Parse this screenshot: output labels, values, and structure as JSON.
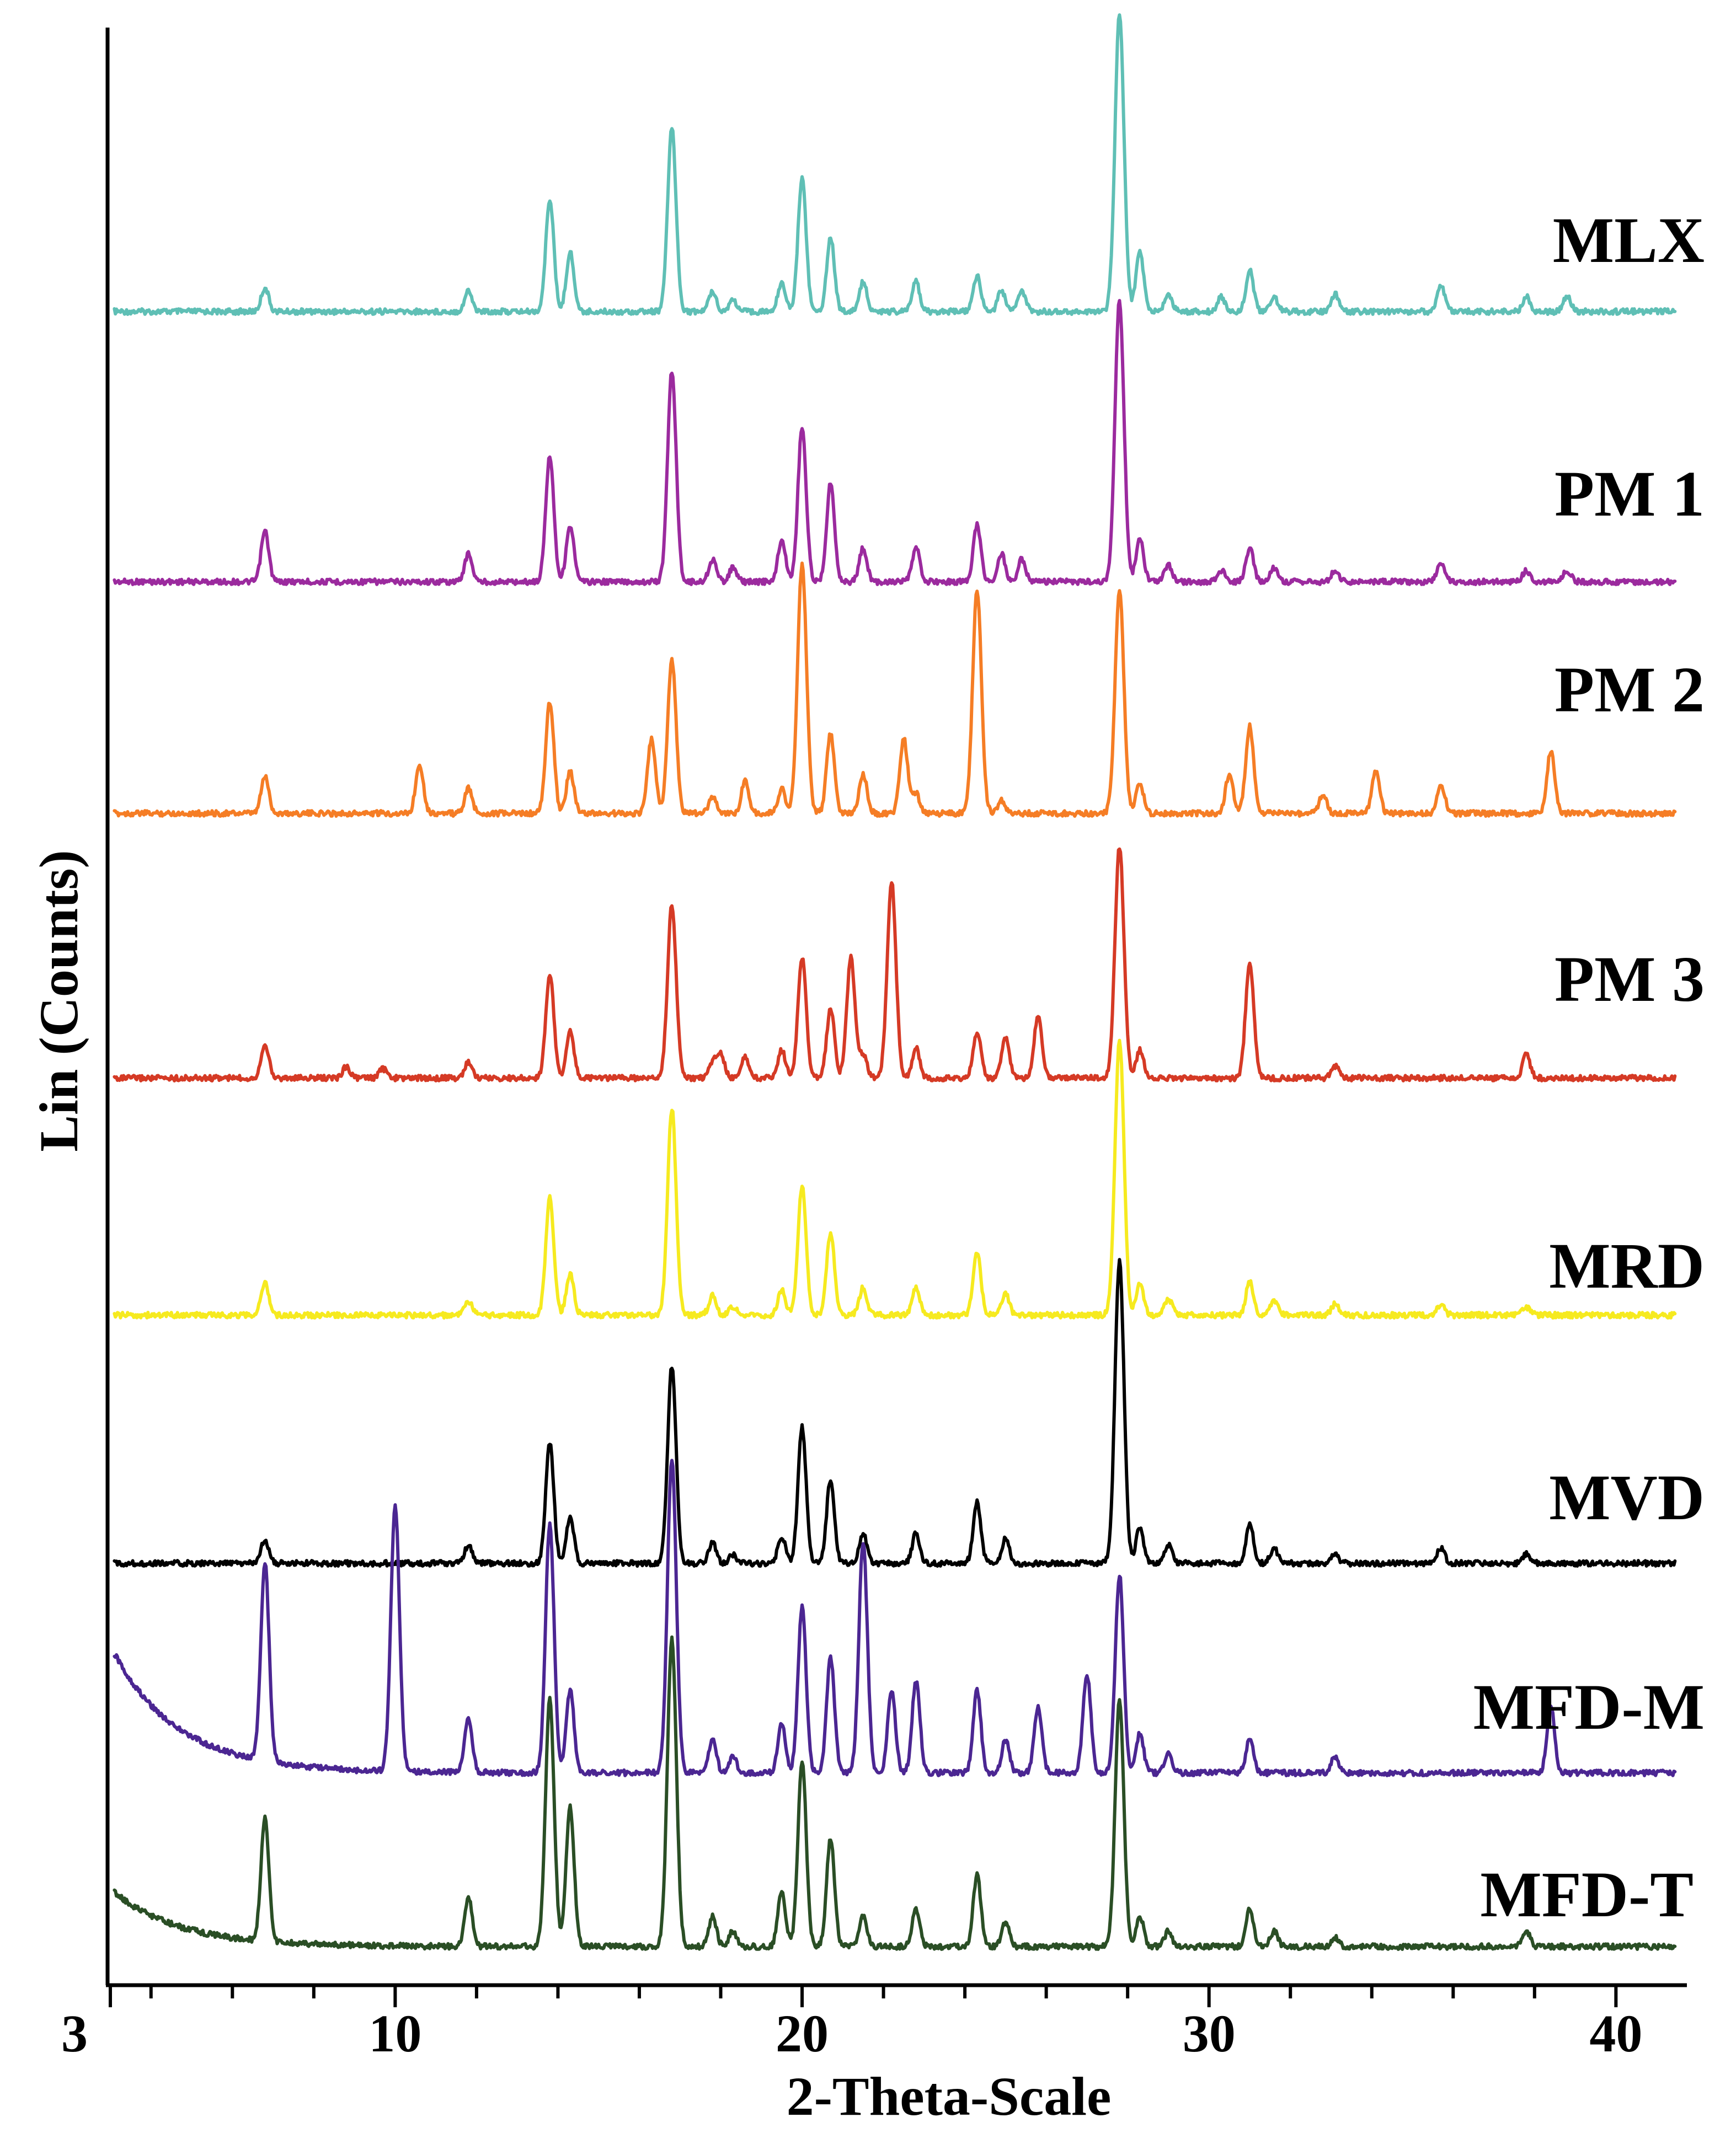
{
  "chart_data": {
    "type": "line",
    "title": "",
    "xlabel": "2-Theta-Scale",
    "ylabel": "Lin (Counts)",
    "xlim": [
      3,
      41.5
    ],
    "x_ticks": [
      3,
      10,
      20,
      30,
      40
    ],
    "x_tick_labels": [
      "3",
      "10",
      "20",
      "30",
      "40"
    ],
    "grid": false,
    "legend": "inline-right",
    "series": [
      {
        "name": "MLX",
        "color": "#5fbfb5",
        "peaks": [
          [
            6.8,
            0.08
          ],
          [
            11.8,
            0.07
          ],
          [
            13.8,
            0.38
          ],
          [
            14.3,
            0.2
          ],
          [
            16.8,
            0.62
          ],
          [
            17.8,
            0.07
          ],
          [
            18.3,
            0.04
          ],
          [
            19.5,
            0.1
          ],
          [
            20.0,
            0.45
          ],
          [
            20.7,
            0.25
          ],
          [
            21.5,
            0.1
          ],
          [
            22.8,
            0.1
          ],
          [
            24.3,
            0.12
          ],
          [
            24.9,
            0.07
          ],
          [
            25.4,
            0.07
          ],
          [
            27.8,
            1.0
          ],
          [
            28.3,
            0.2
          ],
          [
            29.0,
            0.06
          ],
          [
            30.3,
            0.05
          ],
          [
            31.0,
            0.14
          ],
          [
            31.6,
            0.05
          ],
          [
            33.1,
            0.06
          ],
          [
            35.7,
            0.09
          ],
          [
            37.8,
            0.05
          ],
          [
            38.8,
            0.05
          ]
        ]
      },
      {
        "name": "PM 1",
        "color": "#9b2a9e",
        "peaks": [
          [
            6.8,
            0.18
          ],
          [
            11.8,
            0.1
          ],
          [
            13.8,
            0.45
          ],
          [
            14.3,
            0.2
          ],
          [
            16.8,
            0.75
          ],
          [
            17.8,
            0.08
          ],
          [
            18.3,
            0.05
          ],
          [
            19.5,
            0.15
          ],
          [
            20.0,
            0.55
          ],
          [
            20.7,
            0.35
          ],
          [
            21.5,
            0.12
          ],
          [
            22.8,
            0.12
          ],
          [
            24.3,
            0.2
          ],
          [
            24.9,
            0.1
          ],
          [
            25.4,
            0.08
          ],
          [
            27.8,
            1.0
          ],
          [
            28.3,
            0.15
          ],
          [
            29.0,
            0.06
          ],
          [
            30.3,
            0.04
          ],
          [
            31.0,
            0.12
          ],
          [
            31.6,
            0.05
          ],
          [
            33.1,
            0.04
          ],
          [
            35.7,
            0.07
          ],
          [
            37.8,
            0.04
          ],
          [
            38.8,
            0.04
          ]
        ]
      },
      {
        "name": "PM 2",
        "color": "#f57d25",
        "peaks": [
          [
            6.8,
            0.15
          ],
          [
            10.6,
            0.2
          ],
          [
            11.8,
            0.1
          ],
          [
            13.8,
            0.45
          ],
          [
            14.3,
            0.17
          ],
          [
            16.3,
            0.3
          ],
          [
            16.8,
            0.62
          ],
          [
            17.8,
            0.07
          ],
          [
            18.6,
            0.13
          ],
          [
            19.5,
            0.1
          ],
          [
            20.0,
            1.0
          ],
          [
            20.7,
            0.32
          ],
          [
            21.5,
            0.16
          ],
          [
            22.5,
            0.3
          ],
          [
            22.8,
            0.08
          ],
          [
            24.3,
            0.9
          ],
          [
            24.9,
            0.05
          ],
          [
            27.8,
            0.9
          ],
          [
            28.3,
            0.12
          ],
          [
            30.5,
            0.16
          ],
          [
            31.0,
            0.35
          ],
          [
            32.8,
            0.08
          ],
          [
            34.1,
            0.17
          ],
          [
            35.7,
            0.12
          ],
          [
            38.4,
            0.25
          ]
        ]
      },
      {
        "name": "PM 3",
        "color": "#d53a25",
        "peaks": [
          [
            6.8,
            0.15
          ],
          [
            8.8,
            0.05
          ],
          [
            9.7,
            0.04
          ],
          [
            11.8,
            0.07
          ],
          [
            13.8,
            0.45
          ],
          [
            14.3,
            0.2
          ],
          [
            16.8,
            0.75
          ],
          [
            17.8,
            0.07
          ],
          [
            18.0,
            0.1
          ],
          [
            18.6,
            0.09
          ],
          [
            19.5,
            0.12
          ],
          [
            20.0,
            0.52
          ],
          [
            20.7,
            0.3
          ],
          [
            21.2,
            0.52
          ],
          [
            21.5,
            0.1
          ],
          [
            22.2,
            0.85
          ],
          [
            22.8,
            0.13
          ],
          [
            24.3,
            0.2
          ],
          [
            25.0,
            0.17
          ],
          [
            25.8,
            0.27
          ],
          [
            27.8,
            1.0
          ],
          [
            28.3,
            0.12
          ],
          [
            31.0,
            0.5
          ],
          [
            33.1,
            0.05
          ],
          [
            37.8,
            0.1
          ]
        ]
      },
      {
        "name": "MRD",
        "color": "#f6ea1f",
        "peaks": [
          [
            6.8,
            0.12
          ],
          [
            11.8,
            0.05
          ],
          [
            13.8,
            0.43
          ],
          [
            14.3,
            0.15
          ],
          [
            16.8,
            0.75
          ],
          [
            17.8,
            0.07
          ],
          [
            18.3,
            0.03
          ],
          [
            19.5,
            0.09
          ],
          [
            20.0,
            0.47
          ],
          [
            20.7,
            0.3
          ],
          [
            21.5,
            0.1
          ],
          [
            22.8,
            0.1
          ],
          [
            24.3,
            0.23
          ],
          [
            25.0,
            0.08
          ],
          [
            27.8,
            1.0
          ],
          [
            28.3,
            0.12
          ],
          [
            29.0,
            0.06
          ],
          [
            31.0,
            0.12
          ],
          [
            31.6,
            0.05
          ],
          [
            33.1,
            0.04
          ],
          [
            35.7,
            0.04
          ],
          [
            37.8,
            0.03
          ]
        ]
      },
      {
        "name": "MVD",
        "color": "#000000",
        "peaks": [
          [
            6.8,
            0.08
          ],
          [
            11.8,
            0.06
          ],
          [
            13.8,
            0.4
          ],
          [
            14.3,
            0.15
          ],
          [
            16.8,
            0.65
          ],
          [
            17.8,
            0.07
          ],
          [
            18.3,
            0.03
          ],
          [
            19.5,
            0.09
          ],
          [
            20.0,
            0.45
          ],
          [
            20.7,
            0.28
          ],
          [
            21.5,
            0.1
          ],
          [
            22.8,
            0.1
          ],
          [
            24.3,
            0.2
          ],
          [
            25.0,
            0.08
          ],
          [
            27.8,
            1.0
          ],
          [
            28.3,
            0.12
          ],
          [
            29.0,
            0.06
          ],
          [
            31.0,
            0.13
          ],
          [
            31.6,
            0.05
          ],
          [
            33.1,
            0.03
          ],
          [
            35.7,
            0.05
          ],
          [
            37.8,
            0.03
          ]
        ]
      },
      {
        "name": "MFD-M",
        "color": "#4b2692",
        "peaks": [
          [
            6.8,
            0.6
          ],
          [
            10.0,
            0.8
          ],
          [
            11.8,
            0.16
          ],
          [
            13.8,
            0.75
          ],
          [
            14.3,
            0.25
          ],
          [
            16.8,
            0.95
          ],
          [
            17.8,
            0.1
          ],
          [
            18.3,
            0.05
          ],
          [
            19.5,
            0.15
          ],
          [
            20.0,
            0.5
          ],
          [
            20.7,
            0.35
          ],
          [
            21.5,
            0.7
          ],
          [
            22.2,
            0.25
          ],
          [
            22.8,
            0.28
          ],
          [
            24.3,
            0.25
          ],
          [
            25.0,
            0.1
          ],
          [
            25.8,
            0.2
          ],
          [
            27.0,
            0.3
          ],
          [
            27.8,
            0.6
          ],
          [
            28.3,
            0.12
          ],
          [
            29.0,
            0.06
          ],
          [
            31.0,
            0.1
          ],
          [
            33.1,
            0.05
          ],
          [
            38.4,
            0.2
          ]
        ]
      },
      {
        "name": "MFD-T",
        "color": "#2a4e25",
        "peaks": [
          [
            6.8,
            0.4
          ],
          [
            11.8,
            0.16
          ],
          [
            13.8,
            0.8
          ],
          [
            14.3,
            0.45
          ],
          [
            16.8,
            1.0
          ],
          [
            17.8,
            0.1
          ],
          [
            18.3,
            0.05
          ],
          [
            19.5,
            0.18
          ],
          [
            20.0,
            0.6
          ],
          [
            20.7,
            0.35
          ],
          [
            21.5,
            0.1
          ],
          [
            22.8,
            0.12
          ],
          [
            24.3,
            0.23
          ],
          [
            25.0,
            0.08
          ],
          [
            27.8,
            0.8
          ],
          [
            28.3,
            0.1
          ],
          [
            29.0,
            0.05
          ],
          [
            31.0,
            0.12
          ],
          [
            31.6,
            0.05
          ],
          [
            33.1,
            0.03
          ],
          [
            37.8,
            0.05
          ]
        ]
      }
    ]
  }
}
